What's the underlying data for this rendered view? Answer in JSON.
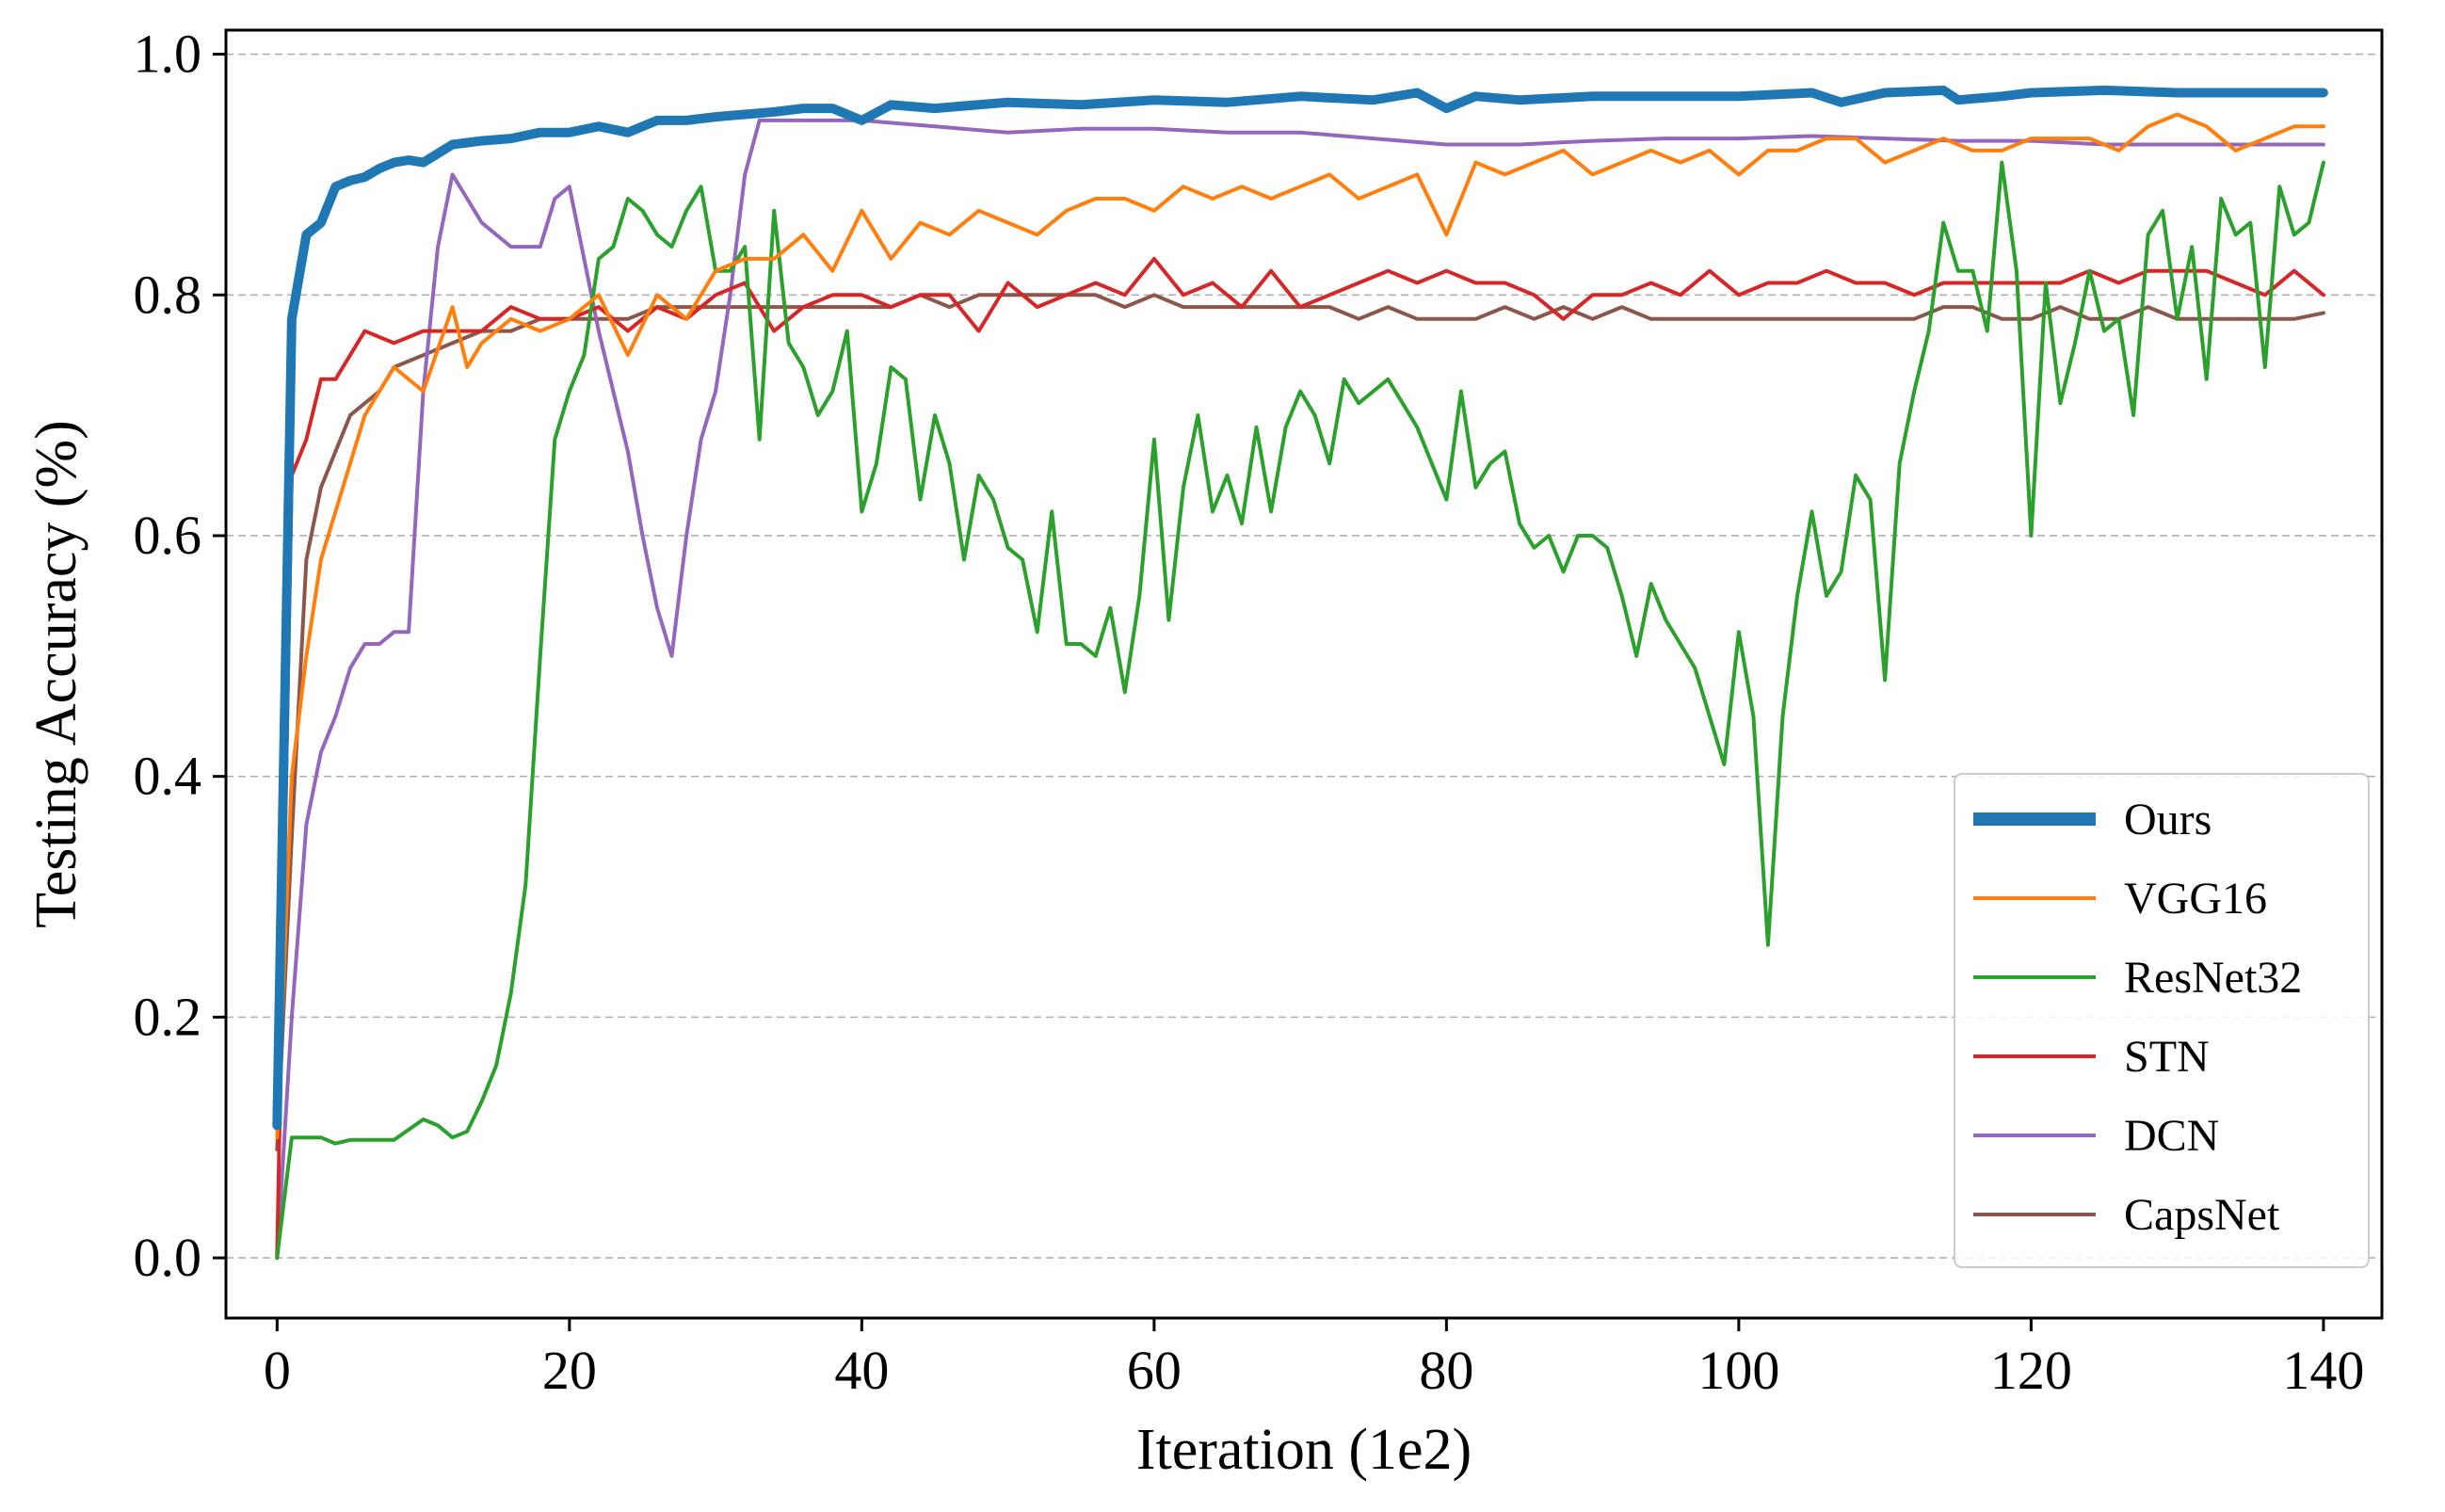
{
  "chart_data": {
    "type": "line",
    "title": "",
    "xlabel": "Iteration (1e2)",
    "ylabel": "Testing Accuracy (%)",
    "xlim": [
      -3.5,
      144
    ],
    "ylim": [
      -0.05,
      1.02
    ],
    "xticks": [
      0,
      20,
      40,
      60,
      80,
      100,
      120,
      140
    ],
    "yticks": [
      0.0,
      0.2,
      0.4,
      0.6,
      0.8,
      1.0
    ],
    "xtick_labels": [
      "0",
      "20",
      "40",
      "60",
      "80",
      "100",
      "120",
      "140"
    ],
    "ytick_labels": [
      "0.0",
      "0.2",
      "0.4",
      "0.6",
      "0.8",
      "1.0"
    ],
    "grid": "horizontal-dashed",
    "legend_position": "lower-right",
    "series": [
      {
        "name": "Ours",
        "color": "#1f77b4",
        "width": 10,
        "x": [
          0,
          1,
          2,
          3,
          4,
          5,
          6,
          7,
          8,
          9,
          10,
          12,
          14,
          16,
          18,
          20,
          22,
          24,
          26,
          28,
          30,
          32,
          34,
          36,
          38,
          40,
          42,
          45,
          50,
          55,
          60,
          65,
          70,
          75,
          78,
          80,
          82,
          85,
          90,
          95,
          100,
          105,
          107,
          110,
          114,
          115,
          118,
          120,
          125,
          130,
          135,
          140
        ],
        "y": [
          0.11,
          0.78,
          0.85,
          0.86,
          0.89,
          0.895,
          0.898,
          0.905,
          0.91,
          0.912,
          0.91,
          0.925,
          0.928,
          0.93,
          0.935,
          0.935,
          0.94,
          0.935,
          0.945,
          0.945,
          0.948,
          0.95,
          0.952,
          0.955,
          0.955,
          0.945,
          0.958,
          0.955,
          0.96,
          0.958,
          0.962,
          0.96,
          0.965,
          0.962,
          0.968,
          0.955,
          0.965,
          0.962,
          0.965,
          0.965,
          0.965,
          0.968,
          0.96,
          0.968,
          0.97,
          0.962,
          0.965,
          0.968,
          0.97,
          0.968,
          0.968,
          0.968
        ]
      },
      {
        "name": "VGG16",
        "color": "#ff7f0e",
        "width": 4,
        "x": [
          0,
          1,
          2,
          3,
          4,
          6,
          8,
          10,
          12,
          13,
          14,
          16,
          18,
          20,
          22,
          24,
          26,
          28,
          30,
          32,
          34,
          36,
          38,
          40,
          42,
          44,
          46,
          48,
          50,
          52,
          54,
          56,
          58,
          60,
          62,
          64,
          66,
          68,
          70,
          72,
          74,
          76,
          78,
          80,
          82,
          84,
          86,
          88,
          90,
          92,
          94,
          96,
          98,
          100,
          102,
          104,
          106,
          108,
          110,
          112,
          114,
          116,
          118,
          120,
          122,
          124,
          126,
          128,
          130,
          132,
          134,
          136,
          138,
          140
        ],
        "y": [
          0.1,
          0.4,
          0.5,
          0.58,
          0.62,
          0.7,
          0.74,
          0.72,
          0.79,
          0.74,
          0.76,
          0.78,
          0.77,
          0.78,
          0.8,
          0.75,
          0.8,
          0.78,
          0.82,
          0.83,
          0.83,
          0.85,
          0.82,
          0.87,
          0.83,
          0.86,
          0.85,
          0.87,
          0.86,
          0.85,
          0.87,
          0.88,
          0.88,
          0.87,
          0.89,
          0.88,
          0.89,
          0.88,
          0.89,
          0.9,
          0.88,
          0.89,
          0.9,
          0.85,
          0.91,
          0.9,
          0.91,
          0.92,
          0.9,
          0.91,
          0.92,
          0.91,
          0.92,
          0.9,
          0.92,
          0.92,
          0.93,
          0.93,
          0.91,
          0.92,
          0.93,
          0.92,
          0.92,
          0.93,
          0.93,
          0.93,
          0.92,
          0.94,
          0.95,
          0.94,
          0.92,
          0.93,
          0.94,
          0.94
        ]
      },
      {
        "name": "ResNet32",
        "color": "#2ca02c",
        "width": 4,
        "x": [
          0,
          1,
          2,
          3,
          4,
          5,
          6,
          8,
          10,
          11,
          12,
          13,
          14,
          15,
          16,
          17,
          18,
          19,
          20,
          21,
          22,
          23,
          24,
          25,
          26,
          27,
          28,
          29,
          30,
          31,
          32,
          33,
          34,
          35,
          36,
          37,
          38,
          39,
          40,
          41,
          42,
          43,
          44,
          45,
          46,
          47,
          48,
          49,
          50,
          51,
          52,
          53,
          54,
          55,
          56,
          57,
          58,
          59,
          60,
          61,
          62,
          63,
          64,
          65,
          66,
          67,
          68,
          69,
          70,
          71,
          72,
          73,
          74,
          75,
          76,
          77,
          78,
          79,
          80,
          81,
          82,
          83,
          84,
          85,
          86,
          87,
          88,
          89,
          90,
          91,
          92,
          93,
          94,
          95,
          96,
          97,
          98,
          99,
          100,
          101,
          102,
          103,
          104,
          105,
          106,
          107,
          108,
          109,
          110,
          111,
          112,
          113,
          114,
          115,
          116,
          117,
          118,
          119,
          120,
          121,
          122,
          123,
          124,
          125,
          126,
          127,
          128,
          129,
          130,
          131,
          132,
          133,
          134,
          135,
          136,
          137,
          138,
          139,
          140
        ],
        "y": [
          0.0,
          0.1,
          0.1,
          0.1,
          0.095,
          0.098,
          0.098,
          0.098,
          0.115,
          0.11,
          0.1,
          0.105,
          0.13,
          0.16,
          0.22,
          0.31,
          0.5,
          0.68,
          0.72,
          0.75,
          0.83,
          0.84,
          0.88,
          0.87,
          0.85,
          0.84,
          0.87,
          0.89,
          0.82,
          0.82,
          0.84,
          0.68,
          0.87,
          0.76,
          0.74,
          0.7,
          0.72,
          0.77,
          0.62,
          0.66,
          0.74,
          0.73,
          0.63,
          0.7,
          0.66,
          0.58,
          0.65,
          0.63,
          0.59,
          0.58,
          0.52,
          0.62,
          0.51,
          0.51,
          0.5,
          0.54,
          0.47,
          0.55,
          0.68,
          0.53,
          0.64,
          0.7,
          0.62,
          0.65,
          0.61,
          0.69,
          0.62,
          0.69,
          0.72,
          0.7,
          0.66,
          0.73,
          0.71,
          0.72,
          0.73,
          0.71,
          0.69,
          0.66,
          0.63,
          0.72,
          0.64,
          0.66,
          0.67,
          0.61,
          0.59,
          0.6,
          0.57,
          0.6,
          0.6,
          0.59,
          0.55,
          0.5,
          0.56,
          0.53,
          0.51,
          0.49,
          0.45,
          0.41,
          0.52,
          0.45,
          0.26,
          0.45,
          0.55,
          0.62,
          0.55,
          0.57,
          0.65,
          0.63,
          0.48,
          0.66,
          0.72,
          0.77,
          0.86,
          0.82,
          0.82,
          0.77,
          0.91,
          0.82,
          0.6,
          0.81,
          0.71,
          0.76,
          0.82,
          0.77,
          0.78,
          0.7,
          0.85,
          0.87,
          0.78,
          0.84,
          0.73,
          0.88,
          0.85,
          0.86,
          0.74,
          0.89,
          0.85,
          0.86,
          0.91
        ]
      },
      {
        "name": "STN",
        "color": "#d62728",
        "width": 4,
        "x": [
          0,
          1,
          2,
          3,
          4,
          6,
          8,
          10,
          12,
          14,
          16,
          18,
          20,
          22,
          24,
          26,
          28,
          30,
          32,
          34,
          36,
          38,
          40,
          42,
          44,
          46,
          48,
          50,
          52,
          54,
          56,
          58,
          60,
          62,
          64,
          66,
          68,
          70,
          72,
          74,
          76,
          78,
          80,
          82,
          84,
          86,
          88,
          90,
          92,
          94,
          96,
          98,
          100,
          102,
          104,
          106,
          108,
          110,
          112,
          114,
          116,
          118,
          120,
          122,
          124,
          126,
          128,
          130,
          132,
          134,
          136,
          138,
          140
        ],
        "y": [
          0.0,
          0.65,
          0.68,
          0.73,
          0.73,
          0.77,
          0.76,
          0.77,
          0.77,
          0.77,
          0.79,
          0.78,
          0.78,
          0.79,
          0.77,
          0.79,
          0.78,
          0.8,
          0.81,
          0.77,
          0.79,
          0.8,
          0.8,
          0.79,
          0.8,
          0.8,
          0.77,
          0.81,
          0.79,
          0.8,
          0.81,
          0.8,
          0.83,
          0.8,
          0.81,
          0.79,
          0.82,
          0.79,
          0.8,
          0.81,
          0.82,
          0.81,
          0.82,
          0.81,
          0.81,
          0.8,
          0.78,
          0.8,
          0.8,
          0.81,
          0.8,
          0.82,
          0.8,
          0.81,
          0.81,
          0.82,
          0.81,
          0.81,
          0.8,
          0.81,
          0.81,
          0.81,
          0.81,
          0.81,
          0.82,
          0.81,
          0.82,
          0.82,
          0.82,
          0.81,
          0.8,
          0.82,
          0.8
        ]
      },
      {
        "name": "DCN",
        "color": "#9467bd",
        "width": 4,
        "x": [
          0,
          1,
          2,
          3,
          4,
          5,
          6,
          7,
          8,
          9,
          10,
          11,
          12,
          13,
          14,
          15,
          16,
          17,
          18,
          19,
          20,
          21,
          22,
          23,
          24,
          25,
          26,
          27,
          28,
          29,
          30,
          31,
          32,
          33,
          35,
          40,
          45,
          50,
          55,
          60,
          65,
          70,
          75,
          80,
          85,
          90,
          95,
          100,
          105,
          110,
          115,
          120,
          125,
          130,
          135,
          140
        ],
        "y": [
          0.0,
          0.2,
          0.36,
          0.42,
          0.45,
          0.49,
          0.51,
          0.51,
          0.52,
          0.52,
          0.72,
          0.84,
          0.9,
          0.88,
          0.86,
          0.85,
          0.84,
          0.84,
          0.84,
          0.88,
          0.89,
          0.83,
          0.77,
          0.72,
          0.67,
          0.6,
          0.54,
          0.5,
          0.6,
          0.68,
          0.72,
          0.8,
          0.9,
          0.945,
          0.945,
          0.945,
          0.94,
          0.935,
          0.938,
          0.938,
          0.935,
          0.935,
          0.93,
          0.925,
          0.925,
          0.928,
          0.93,
          0.93,
          0.932,
          0.93,
          0.928,
          0.928,
          0.925,
          0.925,
          0.925,
          0.925
        ]
      },
      {
        "name": "CapsNet",
        "color": "#8c564b",
        "width": 4,
        "x": [
          0,
          1,
          2,
          3,
          4,
          5,
          6,
          7,
          8,
          10,
          12,
          14,
          16,
          18,
          20,
          22,
          24,
          26,
          28,
          30,
          32,
          34,
          36,
          38,
          40,
          42,
          44,
          46,
          48,
          50,
          52,
          54,
          56,
          58,
          60,
          62,
          64,
          66,
          68,
          70,
          72,
          74,
          76,
          78,
          80,
          82,
          84,
          86,
          88,
          90,
          92,
          94,
          96,
          98,
          100,
          102,
          104,
          106,
          108,
          110,
          112,
          114,
          116,
          118,
          120,
          122,
          124,
          126,
          128,
          130,
          132,
          134,
          136,
          138,
          140
        ],
        "y": [
          0.09,
          0.35,
          0.58,
          0.64,
          0.67,
          0.7,
          0.71,
          0.72,
          0.74,
          0.75,
          0.76,
          0.77,
          0.77,
          0.78,
          0.78,
          0.78,
          0.78,
          0.79,
          0.79,
          0.79,
          0.79,
          0.79,
          0.79,
          0.79,
          0.79,
          0.79,
          0.8,
          0.79,
          0.8,
          0.8,
          0.8,
          0.8,
          0.8,
          0.79,
          0.8,
          0.79,
          0.79,
          0.79,
          0.79,
          0.79,
          0.79,
          0.78,
          0.79,
          0.78,
          0.78,
          0.78,
          0.79,
          0.78,
          0.79,
          0.78,
          0.79,
          0.78,
          0.78,
          0.78,
          0.78,
          0.78,
          0.78,
          0.78,
          0.78,
          0.78,
          0.78,
          0.79,
          0.79,
          0.78,
          0.78,
          0.79,
          0.78,
          0.78,
          0.79,
          0.78,
          0.78,
          0.78,
          0.78,
          0.78,
          0.785
        ]
      }
    ]
  }
}
